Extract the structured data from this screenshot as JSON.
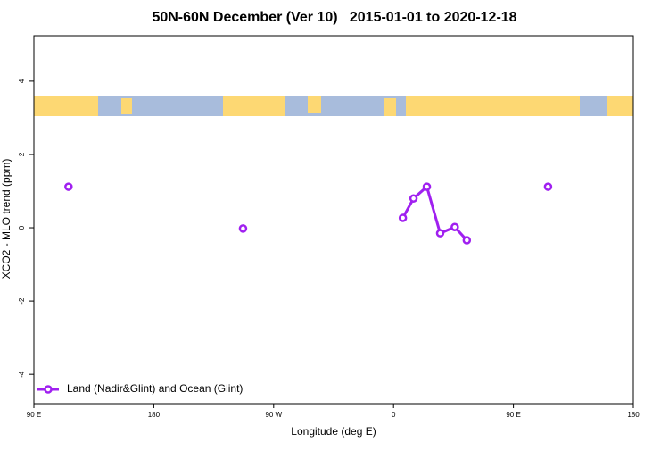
{
  "chart_data": {
    "type": "line",
    "title": "50N-60N December (Ver 10)   2015-01-01 to 2020-12-18",
    "x_label": "Longitude (deg E)",
    "y_label": "XCO2 - MLO trend (ppm)",
    "x": [
      -244,
      null,
      -113,
      null,
      7,
      15,
      25,
      35,
      46,
      55,
      null,
      116
    ],
    "series": [
      {
        "name": "Land (Nadir&Glint) and Ocean (Glint)",
        "color": "#a020f0",
        "values": [
          1.12,
          null,
          -0.02,
          null,
          0.27,
          0.8,
          1.12,
          -0.15,
          0.02,
          -0.34,
          null,
          1.12
        ]
      }
    ],
    "xlim": [
      -270,
      180
    ],
    "xticks": [
      {
        "value": -270,
        "label": "90 E"
      },
      {
        "value": -180,
        "label": "180"
      },
      {
        "value": -90,
        "label": "90 W"
      },
      0,
      {
        "value": 90,
        "label": "90 E"
      },
      180
    ],
    "ylim": [
      -4.8,
      5.24
    ],
    "yticks": [
      -4,
      -2,
      0,
      2,
      4
    ],
    "legend": "bottom-left"
  }
}
